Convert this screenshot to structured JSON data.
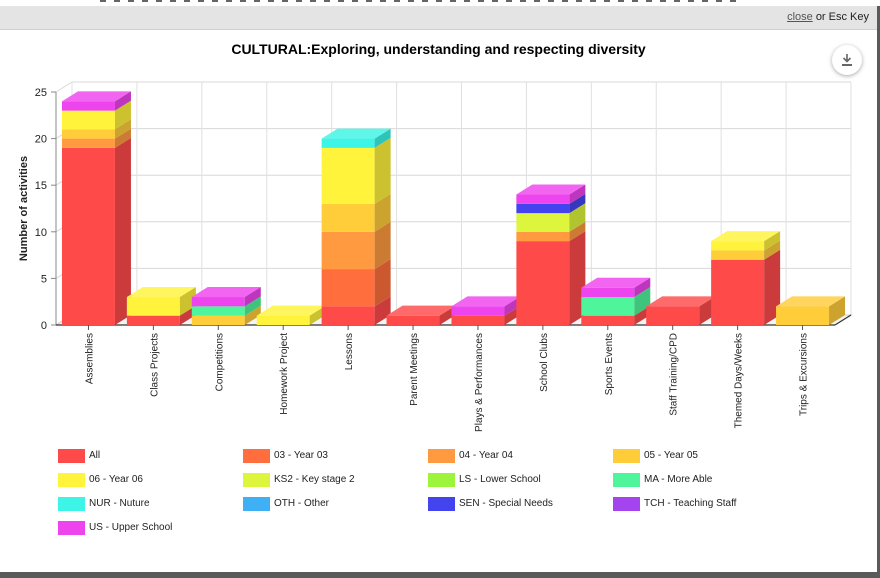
{
  "dialog": {
    "close_label": "close",
    "close_suffix": "or Esc Key",
    "download_icon": "download-icon"
  },
  "chart_data": {
    "type": "bar",
    "stacked": true,
    "title": "CULTURAL:Exploring, understanding and respecting diversity",
    "xlabel": "",
    "ylabel": "Number of activities",
    "ylim": [
      0,
      25
    ],
    "yticks": [
      0,
      5,
      10,
      15,
      20,
      25
    ],
    "grid": true,
    "legend_position": "bottom",
    "categories": [
      "Assemblies",
      "Class Projects",
      "Competitions",
      "Homework Project",
      "Lessons",
      "Parent Meetings",
      "Plays & Performances",
      "School Clubs",
      "Sports Events",
      "Staff Training/CPD",
      "Themed Days/Weeks",
      "Trips & Excursions"
    ],
    "series": [
      {
        "name": "All",
        "color": "#ff4a4a",
        "values": [
          19,
          1,
          0,
          0,
          2,
          1,
          1,
          9,
          1,
          2,
          7,
          0
        ]
      },
      {
        "name": "03 - Year 03",
        "color": "#ff6e3c",
        "values": [
          0,
          0,
          0,
          0,
          4,
          0,
          0,
          0,
          0,
          0,
          0,
          0
        ]
      },
      {
        "name": "04 - Year 04",
        "color": "#ff9a40",
        "values": [
          1,
          0,
          0,
          0,
          4,
          0,
          0,
          1,
          0,
          0,
          0,
          0
        ]
      },
      {
        "name": "05 - Year 05",
        "color": "#ffcc3a",
        "values": [
          1,
          0,
          1,
          0,
          3,
          0,
          0,
          0,
          0,
          0,
          1,
          2
        ]
      },
      {
        "name": "06 - Year 06",
        "color": "#fff33c",
        "values": [
          2,
          2,
          0,
          1,
          6,
          0,
          0,
          0,
          0,
          0,
          1,
          0
        ]
      },
      {
        "name": "KS2 - Key stage 2",
        "color": "#ddf53c",
        "values": [
          0,
          0,
          0,
          0,
          0,
          0,
          0,
          2,
          0,
          0,
          0,
          0
        ]
      },
      {
        "name": "LS - Lower School",
        "color": "#9cf53c",
        "values": [
          0,
          0,
          0,
          0,
          0,
          0,
          0,
          0,
          0,
          0,
          0,
          0
        ]
      },
      {
        "name": "MA - More Able",
        "color": "#4ef59a",
        "values": [
          0,
          0,
          1,
          0,
          0,
          0,
          0,
          0,
          2,
          0,
          0,
          0
        ]
      },
      {
        "name": "NUR - Nuture",
        "color": "#3cf5e6",
        "values": [
          0,
          0,
          0,
          0,
          1,
          0,
          0,
          0,
          0,
          0,
          0,
          0
        ]
      },
      {
        "name": "OTH - Other",
        "color": "#40b0f5",
        "values": [
          0,
          0,
          0,
          0,
          0,
          0,
          0,
          0,
          0,
          0,
          0,
          0
        ]
      },
      {
        "name": "SEN - Special Needs",
        "color": "#4444ee",
        "values": [
          0,
          0,
          0,
          0,
          0,
          0,
          0,
          1,
          0,
          0,
          0,
          0
        ]
      },
      {
        "name": "TCH - Teaching Staff",
        "color": "#a444ee",
        "values": [
          0,
          0,
          0,
          0,
          0,
          0,
          0,
          0,
          0,
          0,
          0,
          0
        ]
      },
      {
        "name": "US - Upper School",
        "color": "#ee44ee",
        "values": [
          1,
          0,
          1,
          0,
          0,
          0,
          1,
          1,
          1,
          0,
          0,
          0
        ]
      }
    ]
  }
}
